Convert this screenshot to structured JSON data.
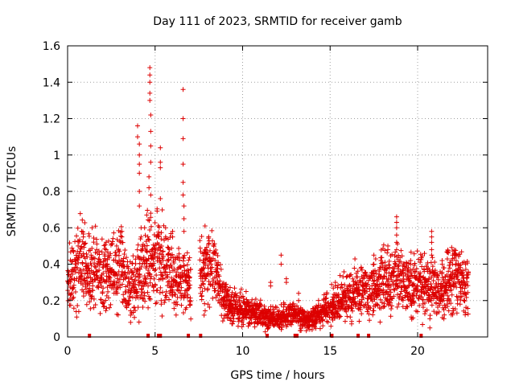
{
  "chart_data": {
    "type": "scatter",
    "title": "Day 111 of 2023, SRMTID for receiver gamb",
    "xlabel": "GPS time / hours",
    "ylabel": "SRMTID / TECUs",
    "xlim": [
      0,
      24
    ],
    "ylim": [
      0,
      1.6
    ],
    "grid": true,
    "marker": "+",
    "color": "#dd0000",
    "x_ticks": [
      0,
      5,
      10,
      15,
      20
    ],
    "x_tick_labels": [
      "0",
      "5",
      "10",
      "15",
      "20"
    ],
    "y_ticks": [
      0,
      0.2,
      0.4,
      0.6,
      0.8,
      1.0,
      1.2,
      1.4,
      1.6
    ],
    "y_tick_labels": [
      "0",
      "0.2",
      "0.4",
      "0.6",
      "0.8",
      "1",
      "1.2",
      "1.4",
      "1.6"
    ],
    "profile": [
      [
        0.0,
        0.3
      ],
      [
        0.5,
        0.35
      ],
      [
        0.8,
        0.45
      ],
      [
        1.0,
        0.38
      ],
      [
        1.3,
        0.32
      ],
      [
        1.6,
        0.38
      ],
      [
        2.0,
        0.35
      ],
      [
        2.5,
        0.36
      ],
      [
        3.0,
        0.38
      ],
      [
        3.3,
        0.3
      ],
      [
        3.6,
        0.28
      ],
      [
        4.0,
        0.3
      ],
      [
        4.3,
        0.35
      ],
      [
        4.6,
        0.45
      ],
      [
        4.9,
        0.42
      ],
      [
        5.2,
        0.45
      ],
      [
        5.5,
        0.4
      ],
      [
        6.0,
        0.35
      ],
      [
        6.4,
        0.35
      ],
      [
        6.7,
        0.32
      ],
      [
        7.0,
        0.28
      ],
      [
        7.6,
        0.35
      ],
      [
        8.0,
        0.38
      ],
      [
        8.4,
        0.36
      ],
      [
        8.7,
        0.25
      ],
      [
        9.0,
        0.2
      ],
      [
        9.5,
        0.16
      ],
      [
        10.0,
        0.15
      ],
      [
        10.5,
        0.13
      ],
      [
        11.0,
        0.12
      ],
      [
        11.5,
        0.1
      ],
      [
        12.0,
        0.1
      ],
      [
        12.5,
        0.12
      ],
      [
        13.0,
        0.12
      ],
      [
        13.5,
        0.1
      ],
      [
        14.0,
        0.1
      ],
      [
        14.5,
        0.14
      ],
      [
        15.0,
        0.16
      ],
      [
        15.5,
        0.2
      ],
      [
        16.0,
        0.22
      ],
      [
        16.5,
        0.25
      ],
      [
        17.0,
        0.25
      ],
      [
        17.5,
        0.27
      ],
      [
        18.0,
        0.3
      ],
      [
        18.5,
        0.3
      ],
      [
        19.0,
        0.32
      ],
      [
        19.5,
        0.3
      ],
      [
        20.0,
        0.28
      ],
      [
        20.3,
        0.3
      ],
      [
        20.6,
        0.26
      ],
      [
        21.0,
        0.28
      ],
      [
        21.5,
        0.26
      ],
      [
        22.0,
        0.34
      ],
      [
        22.5,
        0.3
      ],
      [
        22.8,
        0.28
      ]
    ],
    "spikes": [
      {
        "x": 0.6,
        "values": [
          0.5
        ]
      },
      {
        "x": 0.9,
        "values": [
          0.55
        ]
      },
      {
        "x": 1.4,
        "values": [
          0.6
        ]
      },
      {
        "x": 2.2,
        "values": [
          0.48
        ]
      },
      {
        "x": 2.8,
        "values": [
          0.45,
          0.5
        ]
      },
      {
        "x": 3.1,
        "values": [
          0.55,
          0.58
        ]
      },
      {
        "x": 3.6,
        "values": [
          0.12,
          0.08
        ]
      },
      {
        "x": 4.0,
        "values": [
          1.16,
          1.1
        ]
      },
      {
        "x": 4.1,
        "values": [
          1.06,
          1.0,
          0.95,
          0.9,
          0.8,
          0.72
        ]
      },
      {
        "x": 4.2,
        "values": [
          0.6,
          0.55
        ]
      },
      {
        "x": 4.4,
        "values": [
          0.5,
          0.6
        ]
      },
      {
        "x": 4.6,
        "values": [
          0.28,
          0.16
        ]
      },
      {
        "x": 4.7,
        "values": [
          1.48,
          1.44,
          1.4,
          1.34,
          1.3
        ]
      },
      {
        "x": 4.75,
        "values": [
          1.22,
          1.13,
          1.05,
          0.96,
          0.78,
          0.68
        ]
      },
      {
        "x": 4.65,
        "values": [
          0.88,
          0.82
        ]
      },
      {
        "x": 5.3,
        "values": [
          1.04,
          0.96,
          0.93,
          0.76
        ]
      },
      {
        "x": 5.35,
        "values": [
          0.2,
          0.18
        ]
      },
      {
        "x": 5.6,
        "values": [
          0.55,
          0.6
        ]
      },
      {
        "x": 6.0,
        "values": [
          0.58,
          0.55
        ]
      },
      {
        "x": 6.6,
        "values": [
          1.36,
          1.2,
          1.09,
          0.95,
          0.85,
          0.78
        ]
      },
      {
        "x": 6.65,
        "values": [
          0.72,
          0.65,
          0.58
        ]
      },
      {
        "x": 7.0,
        "values": [
          0.18,
          0.2
        ]
      },
      {
        "x": 7.8,
        "values": [
          0.12
        ]
      },
      {
        "x": 7.9,
        "values": [
          0.48,
          0.46
        ]
      },
      {
        "x": 8.5,
        "values": [
          0.46
        ]
      },
      {
        "x": 10.2,
        "values": [
          0.25
        ]
      },
      {
        "x": 11.6,
        "values": [
          0.28,
          0.3
        ]
      },
      {
        "x": 12.2,
        "values": [
          0.4,
          0.45
        ]
      },
      {
        "x": 12.5,
        "values": [
          0.3,
          0.32
        ]
      },
      {
        "x": 13.2,
        "values": [
          0.2,
          0.24
        ]
      },
      {
        "x": 15.3,
        "values": [
          0.28,
          0.3
        ]
      },
      {
        "x": 16.5,
        "values": [
          0.35,
          0.33
        ]
      },
      {
        "x": 17.5,
        "values": [
          0.4,
          0.45
        ]
      },
      {
        "x": 17.9,
        "values": [
          0.42,
          0.38
        ]
      },
      {
        "x": 18.3,
        "values": [
          0.48,
          0.5
        ]
      },
      {
        "x": 18.8,
        "values": [
          0.66,
          0.63,
          0.6,
          0.56,
          0.52,
          0.48
        ]
      },
      {
        "x": 19.6,
        "values": [
          0.42,
          0.4
        ]
      },
      {
        "x": 20.4,
        "values": [
          0.3,
          0.28
        ]
      },
      {
        "x": 20.8,
        "values": [
          0.58,
          0.55,
          0.52,
          0.48,
          0.45
        ]
      },
      {
        "x": 20.7,
        "values": [
          0.1,
          0.05
        ]
      },
      {
        "x": 21.4,
        "values": [
          0.4,
          0.42
        ]
      },
      {
        "x": 21.5,
        "values": [
          0.1,
          0.15
        ]
      },
      {
        "x": 22.0,
        "values": [
          0.45,
          0.43
        ]
      },
      {
        "x": 22.2,
        "values": [
          0.42,
          0.4
        ]
      }
    ],
    "baseline_x": [
      1.25,
      4.6,
      5.2,
      5.3,
      6.9,
      7.6,
      11.4,
      13.0,
      13.1,
      15.1,
      16.6,
      17.2,
      20.2
    ],
    "gaps": [
      [
        7.05,
        7.55
      ],
      [
        23.0,
        24.0
      ]
    ]
  }
}
